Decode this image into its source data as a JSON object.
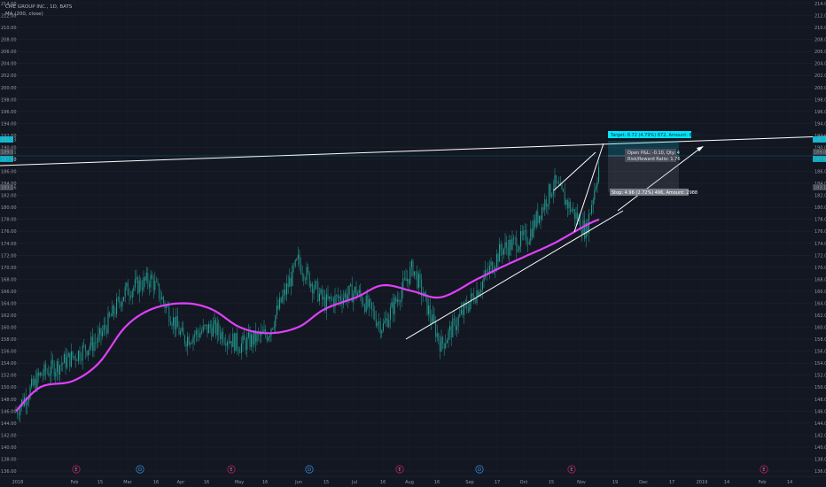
{
  "header": {
    "symbol": "CME GROUP INC., 1D, BATS",
    "indicator": "MA (200, close)"
  },
  "colors": {
    "background": "#131722",
    "grid": "#1e2230",
    "candle": "#26a69a",
    "ma": "#e040fb",
    "trendline": "#ffffff",
    "target": "#00e5ff",
    "label_box": "#787b86"
  },
  "position_tool": {
    "target_label": "Target: 8.72 (4.79%) 872, Amount: 8280",
    "stats_line1": "Open P&L: -0.10, Qty: 4",
    "stats_line2": "Risk/Reward Ratio: 1.76",
    "stop_label": "Stop: 4.96 (2.72%) 496, Amount: 2988"
  },
  "price_tags": {
    "tag1": "191.73",
    "tag2": "189.01",
    "tag3": "187.69",
    "tag4": "183.16"
  },
  "events": [
    "E",
    "D",
    "E",
    "D",
    "E",
    "D",
    "E",
    "E"
  ],
  "chart_data": {
    "type": "line",
    "title": "CME GROUP INC., 1D, BATS",
    "ylim": [
      136,
      214
    ],
    "y_ticks": [
      "214.00",
      "212.00",
      "210.00",
      "208.00",
      "206.00",
      "204.00",
      "202.00",
      "200.00",
      "198.00",
      "196.00",
      "194.00",
      "192.00",
      "190.00",
      "188.00",
      "186.00",
      "184.00",
      "182.00",
      "180.00",
      "178.00",
      "176.00",
      "174.00",
      "172.00",
      "170.00",
      "168.00",
      "166.00",
      "164.00",
      "162.00",
      "160.00",
      "158.00",
      "156.00",
      "154.00",
      "152.00",
      "150.00",
      "148.00",
      "146.00",
      "144.00",
      "142.00",
      "140.00",
      "138.00",
      "136.00"
    ],
    "x_ticks": [
      "2018",
      "Feb",
      "15",
      "Mar",
      "16",
      "Apr",
      "16",
      "May",
      "16",
      "Jun",
      "15",
      "Jul",
      "16",
      "Aug",
      "16",
      "Sep",
      "17",
      "Oct",
      "15",
      "Nov",
      "19",
      "Dec",
      "17",
      "2019",
      "14",
      "Feb",
      "14"
    ],
    "series": [
      {
        "name": "CME GROUP INC.",
        "x": [
          "2018-01-02",
          "2018-01-15",
          "2018-02-01",
          "2018-02-15",
          "2018-03-01",
          "2018-03-15",
          "2018-04-01",
          "2018-04-16",
          "2018-05-01",
          "2018-05-16",
          "2018-06-01",
          "2018-06-15",
          "2018-07-02",
          "2018-07-16",
          "2018-08-01",
          "2018-08-16",
          "2018-09-04",
          "2018-09-17",
          "2018-10-01",
          "2018-10-15",
          "2018-11-01",
          "2018-11-08"
        ],
        "values": [
          146,
          152,
          155,
          158,
          166,
          168,
          158,
          160,
          157,
          159,
          171,
          164,
          166,
          160,
          170,
          157,
          166,
          173,
          175,
          184,
          176,
          187
        ]
      },
      {
        "name": "MA (200, close)",
        "x": [
          "2018-01-02",
          "2018-01-15",
          "2018-02-01",
          "2018-02-15",
          "2018-03-01",
          "2018-03-15",
          "2018-04-01",
          "2018-04-16",
          "2018-05-01",
          "2018-05-16",
          "2018-06-01",
          "2018-06-15",
          "2018-07-02",
          "2018-07-16",
          "2018-08-01",
          "2018-08-16",
          "2018-09-04",
          "2018-09-17",
          "2018-10-01",
          "2018-10-15",
          "2018-11-01",
          "2018-11-08"
        ],
        "values": [
          146,
          150,
          151,
          154,
          160,
          163,
          164,
          163,
          160,
          159,
          160,
          163,
          165,
          167,
          166,
          165,
          168,
          170,
          172,
          174,
          177,
          178
        ]
      }
    ]
  }
}
